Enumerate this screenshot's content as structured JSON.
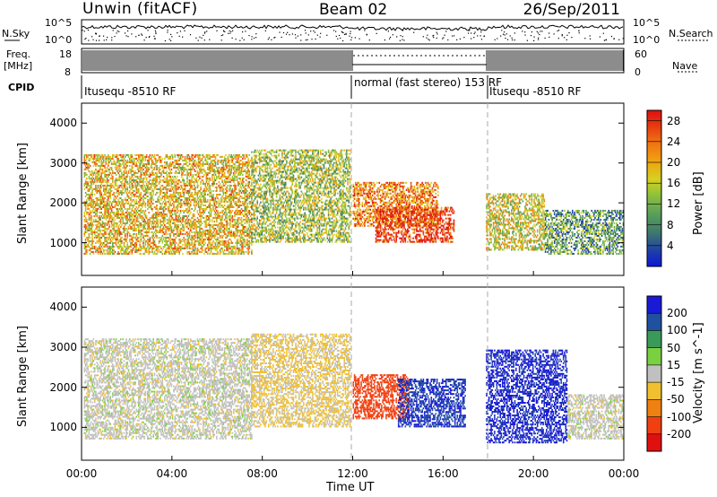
{
  "header": {
    "station": "Unwin (fitACF)",
    "beam": "Beam 02",
    "date": "26/Sep/2011"
  },
  "left_labels": {
    "nsky": "N.Sky",
    "freq": "Freq.",
    "freq_unit": "[MHz]",
    "cpid": "CPID"
  },
  "right_labels": {
    "nsearch": "N.Search",
    "nave": "Nave"
  },
  "noise_panel": {
    "left_ticks": [
      "10^5",
      "10^0"
    ],
    "right_ticks": [
      "10^5",
      "10^0"
    ]
  },
  "freq_panel": {
    "left_ticks": [
      "18",
      "8"
    ],
    "right_ticks": [
      "60",
      "0"
    ]
  },
  "cpid_panel": {
    "segments": [
      {
        "label": "Itusequ -8510 RF",
        "start_hour": 0,
        "end_hour": 12
      },
      {
        "label": "normal (fast stereo) 153 RF",
        "start_hour": 12,
        "end_hour": 18
      },
      {
        "label": "Itusequ -8510 RF",
        "start_hour": 18,
        "end_hour": 24
      }
    ]
  },
  "chart_data": [
    {
      "type": "heatmap",
      "title": "",
      "xlabel": "Time UT",
      "ylabel": "Slant Range [km]",
      "x_ticks": [
        "00:00",
        "04:00",
        "08:00",
        "12:00",
        "16:00",
        "20:00",
        "00:00"
      ],
      "x_range_hours": [
        0,
        24
      ],
      "y_ticks": [
        "1000",
        "2000",
        "3000",
        "4000"
      ],
      "ylim": [
        180,
        4500
      ],
      "colorbar": {
        "label": "Power [dB]",
        "ticks": [
          "4",
          "8",
          "12",
          "16",
          "20",
          "24",
          "28"
        ],
        "range": [
          0,
          30
        ],
        "colors": [
          "#0a19d8",
          "#1f3fa6",
          "#3e7a6b",
          "#5aa05a",
          "#8fc23a",
          "#d7d020",
          "#f0a010",
          "#f07010",
          "#e53a10",
          "#e01010"
        ]
      },
      "regions": [
        {
          "t0": 0.1,
          "t1": 7.5,
          "r0": 700,
          "r1": 3200,
          "value": 18,
          "note": "broad scatter"
        },
        {
          "t0": 7.5,
          "t1": 11.9,
          "r0": 1000,
          "r1": 3300,
          "value": 14
        },
        {
          "t0": 12.0,
          "t1": 15.8,
          "r0": 1400,
          "r1": 2500,
          "value": 22
        },
        {
          "t0": 13.0,
          "t1": 16.5,
          "r0": 1000,
          "r1": 1900,
          "value": 26
        },
        {
          "t0": 17.9,
          "t1": 20.5,
          "r0": 800,
          "r1": 2200,
          "value": 16
        },
        {
          "t0": 20.5,
          "t1": 24,
          "r0": 700,
          "r1": 1800,
          "value": 10
        }
      ]
    },
    {
      "type": "heatmap",
      "title": "",
      "xlabel": "Time UT",
      "ylabel": "Slant Range [km]",
      "x_ticks": [
        "00:00",
        "04:00",
        "08:00",
        "12:00",
        "16:00",
        "20:00",
        "00:00"
      ],
      "x_range_hours": [
        0,
        24
      ],
      "y_ticks": [
        "1000",
        "2000",
        "3000",
        "4000"
      ],
      "ylim": [
        180,
        4500
      ],
      "colorbar": {
        "label": "Velocity [m s^-1]",
        "ticks": [
          "200",
          "100",
          "50",
          "15",
          "-15",
          "-50",
          "-100",
          "-200"
        ],
        "range": [
          -250,
          250
        ],
        "colors": [
          "#1a1ad6",
          "#2050a0",
          "#3a9a5a",
          "#7ad040",
          "#c0c0c0",
          "#f0c030",
          "#f08010",
          "#f04010",
          "#e01010"
        ]
      },
      "regions": [
        {
          "t0": 0.1,
          "t1": 7.5,
          "r0": 700,
          "r1": 3200,
          "value": 0,
          "note": "near-zero velocity"
        },
        {
          "t0": 7.5,
          "t1": 11.9,
          "r0": 1000,
          "r1": 3300,
          "value": -20
        },
        {
          "t0": 12.0,
          "t1": 14.5,
          "r0": 1200,
          "r1": 2300,
          "value": -180
        },
        {
          "t0": 14.0,
          "t1": 17.0,
          "r0": 1000,
          "r1": 2200,
          "value": 200
        },
        {
          "t0": 17.9,
          "t1": 21.5,
          "r0": 600,
          "r1": 2900,
          "value": 210
        },
        {
          "t0": 21.5,
          "t1": 24,
          "r0": 700,
          "r1": 1800,
          "value": 0
        }
      ]
    }
  ]
}
